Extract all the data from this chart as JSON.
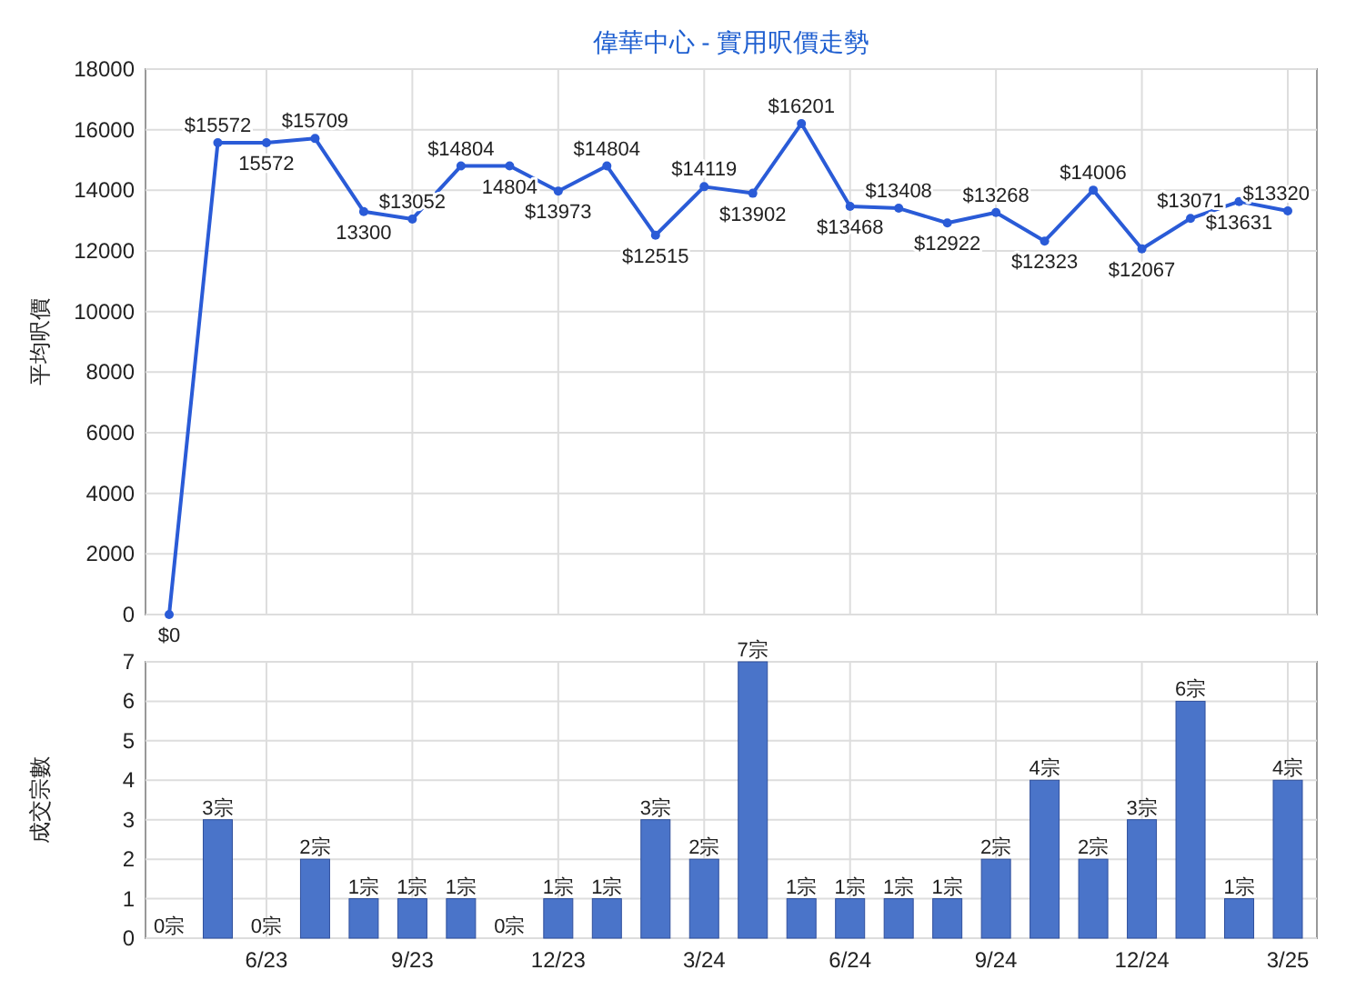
{
  "chart_data": [
    {
      "type": "line",
      "title": "偉華中心 - 實用呎價走勢",
      "ylabel": "平均呎價",
      "categories": [
        null,
        null,
        null,
        null,
        null,
        null,
        null,
        null,
        null,
        null,
        null,
        null,
        null,
        null,
        null,
        null,
        null,
        null,
        null,
        null,
        null,
        null,
        null,
        null
      ],
      "series": [
        {
          "color": "#2a5bd7",
          "values": [
            0,
            15572,
            15572,
            15709,
            13300,
            13052,
            14804,
            14804,
            13973,
            14804,
            12515,
            14119,
            13902,
            16201,
            13468,
            13408,
            12922,
            13268,
            12323,
            14006,
            12067,
            13071,
            13631,
            13320
          ],
          "value_labels": [
            "$0",
            "$15572",
            "15572",
            "$15709",
            "13300",
            "$13052",
            "$14804",
            "14804",
            "$13973",
            "$14804",
            "$12515",
            "$14119",
            "$13902",
            "$16201",
            "$13468",
            "$13408",
            "$12922",
            "$13268",
            "$12323",
            "$14006",
            "$12067",
            "$13071",
            "$13631",
            "$13320"
          ]
        }
      ],
      "ylim": [
        0,
        18000
      ],
      "yticks": [
        0,
        2000,
        4000,
        6000,
        8000,
        10000,
        12000,
        14000,
        16000,
        18000
      ],
      "grid": true,
      "tick_labels": "y",
      "marker": "circle"
    },
    {
      "type": "bar",
      "ylabel": "成交宗數",
      "categories": [
        null,
        null,
        "6/23",
        null,
        null,
        "9/23",
        null,
        null,
        "12/23",
        null,
        null,
        "3/24",
        null,
        null,
        "6/24",
        null,
        null,
        "9/24",
        null,
        null,
        "12/24",
        null,
        null,
        "3/25"
      ],
      "values": [
        0,
        3,
        0,
        2,
        1,
        1,
        1,
        0,
        1,
        1,
        3,
        2,
        7,
        1,
        1,
        1,
        1,
        2,
        4,
        2,
        3,
        6,
        1,
        4
      ],
      "color": "#4a74c9",
      "value_labels": [
        "0宗",
        "3宗",
        "0宗",
        "2宗",
        "1宗",
        "1宗",
        "1宗",
        "0宗",
        "1宗",
        "1宗",
        "3宗",
        "2宗",
        "7宗",
        "1宗",
        "1宗",
        "1宗",
        "1宗",
        "2宗",
        "4宗",
        "2宗",
        "3宗",
        "6宗",
        "1宗",
        "4宗"
      ],
      "ylim": [
        0,
        7
      ],
      "yticks": [
        0,
        1,
        2,
        3,
        4,
        5,
        6,
        7
      ],
      "grid": true
    }
  ]
}
